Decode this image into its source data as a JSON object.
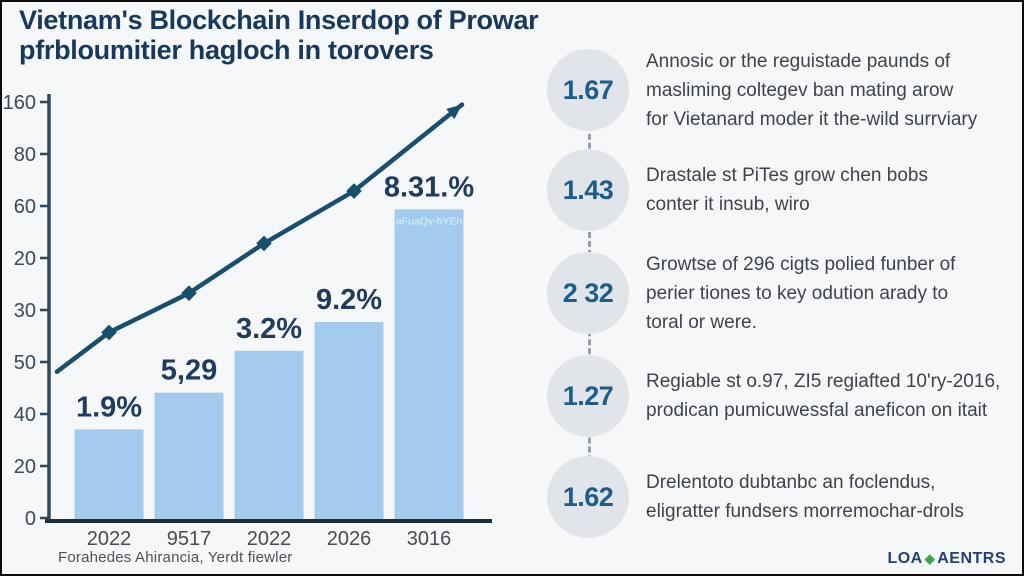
{
  "title": {
    "line1": "Vietnam's Blockchain Inserdop of Prowar",
    "line2": "pfrbloumitier hagloch in torovers"
  },
  "chart_data": {
    "type": "bar+line",
    "categories": [
      "2022",
      "9517",
      "2022",
      "2026",
      "3016"
    ],
    "y_ticks": [
      "160",
      "80",
      "60",
      "20",
      "30",
      "50",
      "40",
      "20",
      "0"
    ],
    "ylim": [
      0,
      160
    ],
    "grid": false,
    "bar_series": {
      "name": "adoption-bars",
      "values": [
        35,
        49,
        65,
        76,
        119
      ],
      "labels": [
        "1.9%",
        "5,29",
        "3.2%",
        "9.2%",
        "8.31.%"
      ],
      "color": "#a3cbee",
      "label_color": "#1e3c61"
    },
    "line_series": {
      "name": "growth-trend",
      "points": [
        {
          "x": 55,
          "v": 57
        },
        {
          "x": 107,
          "v": 72
        },
        {
          "x": 187,
          "v": 87
        },
        {
          "x": 262,
          "v": 106
        },
        {
          "x": 352,
          "v": 126
        },
        {
          "x": 460,
          "v": 159
        }
      ],
      "color": "#17506e",
      "marker": "diamond",
      "arrow_end": true
    },
    "bar5_inner_text": "aFuaQv-bYEh",
    "axis_color": "#2e4a5e",
    "tick_label_color": "#3d4853",
    "x_label_color": "#474c52"
  },
  "panel": {
    "items": [
      {
        "num": "1.67",
        "lines": [
          "Annosic or the reguistade paunds of",
          "masliming coltegev ban mating arow",
          "for Vietanard moder it the-wild surrviary"
        ]
      },
      {
        "num": "1.43",
        "lines": [
          "Drastale st PiTes grow chen bobs",
          "conter it insub, wiro"
        ]
      },
      {
        "num": "2 32",
        "lines": [
          "Growtse of 296 cigts polied funber of",
          "perier tiones to key odution arady to",
          "toral or were."
        ]
      },
      {
        "num": "1.27",
        "lines": [
          "Regiable st o.97, ZI5 regiafted 10'ry-2016,",
          "prodican pumicuwessfal aneficon on itait"
        ]
      },
      {
        "num": "1.62",
        "lines": [
          "Drelentoto dubtanbc an foclendus,",
          "eligratter fundsers morremochar-drols"
        ]
      }
    ]
  },
  "footer": {
    "source": "Forahedes Ahirancia, Yerdt fiewler"
  },
  "logo": {
    "left": "LOA",
    "icon": "green-diamond",
    "right": "AENTRS"
  }
}
